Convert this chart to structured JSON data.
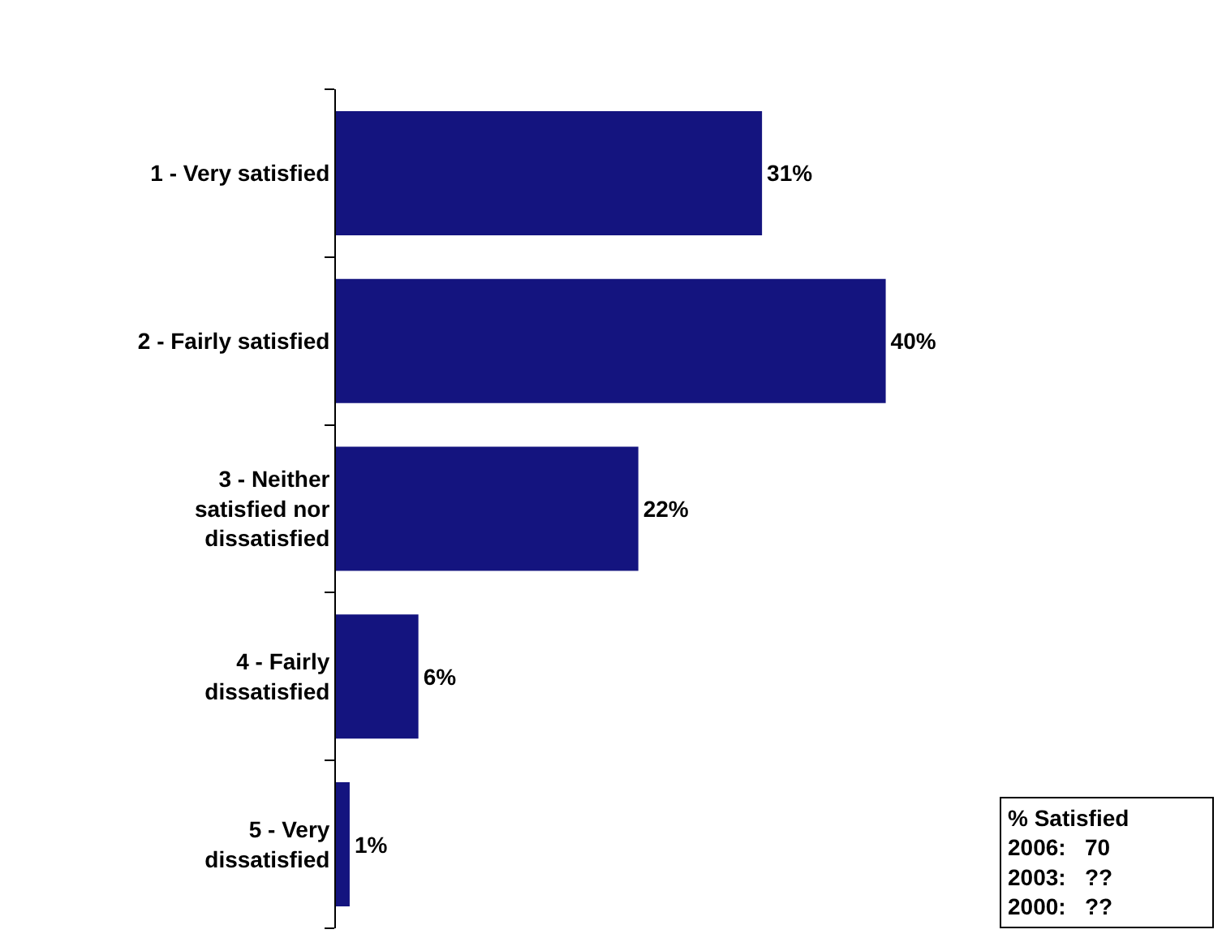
{
  "chart_data": {
    "type": "bar",
    "orientation": "horizontal",
    "categories": [
      "1 - Very satisfied",
      "2 - Fairly satisfied",
      "3 - Neither\nsatisfied nor\ndissatisfied",
      "4 - Fairly\ndissatisfied",
      "5 - Very\ndissatisfied"
    ],
    "values": [
      31,
      40,
      22,
      6,
      1
    ],
    "value_labels": [
      "31%",
      "40%",
      "22%",
      "6%",
      "1%"
    ],
    "color": "#14147f",
    "tick_labels": "y",
    "annotations": [
      "% Satisfied\n2006:   70\n2003:   ??\n2000:   ??\n"
    ]
  }
}
